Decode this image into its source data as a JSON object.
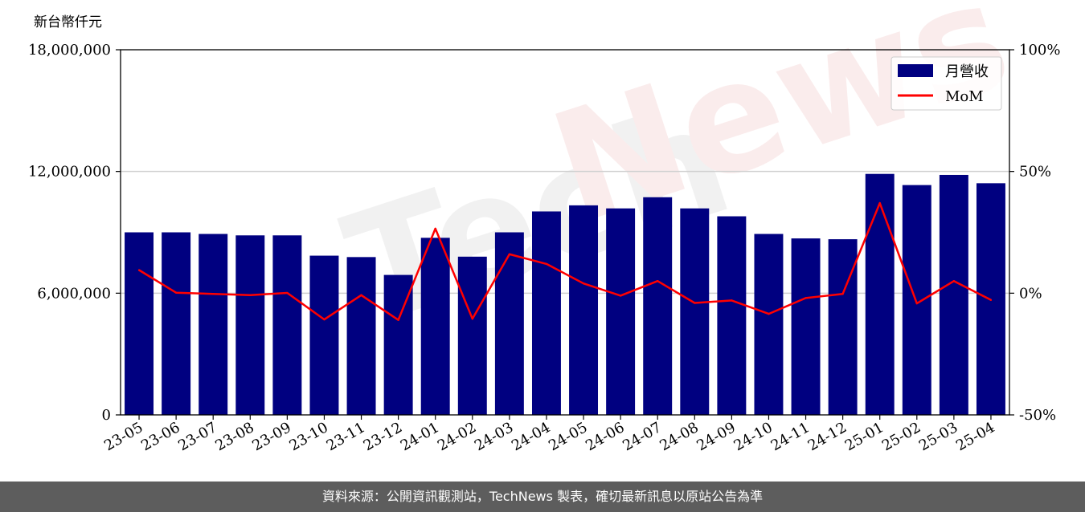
{
  "chart_data": {
    "type": "bar",
    "y_unit_label": "新台幣仟元",
    "categories": [
      "23-05",
      "23-06",
      "23-07",
      "23-08",
      "23-09",
      "23-10",
      "23-11",
      "23-12",
      "24-01",
      "24-02",
      "24-03",
      "24-04",
      "24-05",
      "24-06",
      "24-07",
      "24-08",
      "24-09",
      "24-10",
      "24-11",
      "24-12",
      "25-01",
      "25-02",
      "25-03",
      "25-04"
    ],
    "series": [
      {
        "name": "月營收",
        "axis": "left",
        "type": "bar",
        "color": "#000080",
        "values": [
          9000000,
          9000000,
          8920000,
          8850000,
          8850000,
          7850000,
          7780000,
          6900000,
          8730000,
          7800000,
          9000000,
          10030000,
          10330000,
          10180000,
          10730000,
          10180000,
          9790000,
          8920000,
          8700000,
          8660000,
          11880000,
          11330000,
          11830000,
          11420000
        ]
      },
      {
        "name": "MoM",
        "axis": "right",
        "type": "line",
        "color": "#ff0000",
        "values": [
          9.5,
          0.2,
          -0.3,
          -0.8,
          0.1,
          -10.8,
          -0.8,
          -11.0,
          26.5,
          -10.5,
          16.0,
          12.0,
          4.0,
          -1.0,
          5.0,
          -4.0,
          -3.0,
          -8.5,
          -2.0,
          -0.3,
          37.0,
          -4.2,
          5.0,
          -2.8
        ]
      }
    ],
    "y_left": {
      "lim": [
        0,
        18000000
      ],
      "ticks": [
        "0",
        "6,000,000",
        "12,000,000",
        "18,000,000"
      ],
      "tick_values": [
        0,
        6000000,
        12000000,
        18000000
      ]
    },
    "y_right": {
      "lim": [
        -50,
        100
      ],
      "ticks": [
        "-50%",
        "0%",
        "50%",
        "100%"
      ],
      "tick_values": [
        -50,
        0,
        50,
        100
      ]
    },
    "grid": "horizontal",
    "legend_position": "top-right",
    "watermark": "TechNews"
  },
  "footer": {
    "source_text": "資料來源：公開資訊觀測站，TechNews 製表，確切最新訊息以原站公告為準"
  }
}
